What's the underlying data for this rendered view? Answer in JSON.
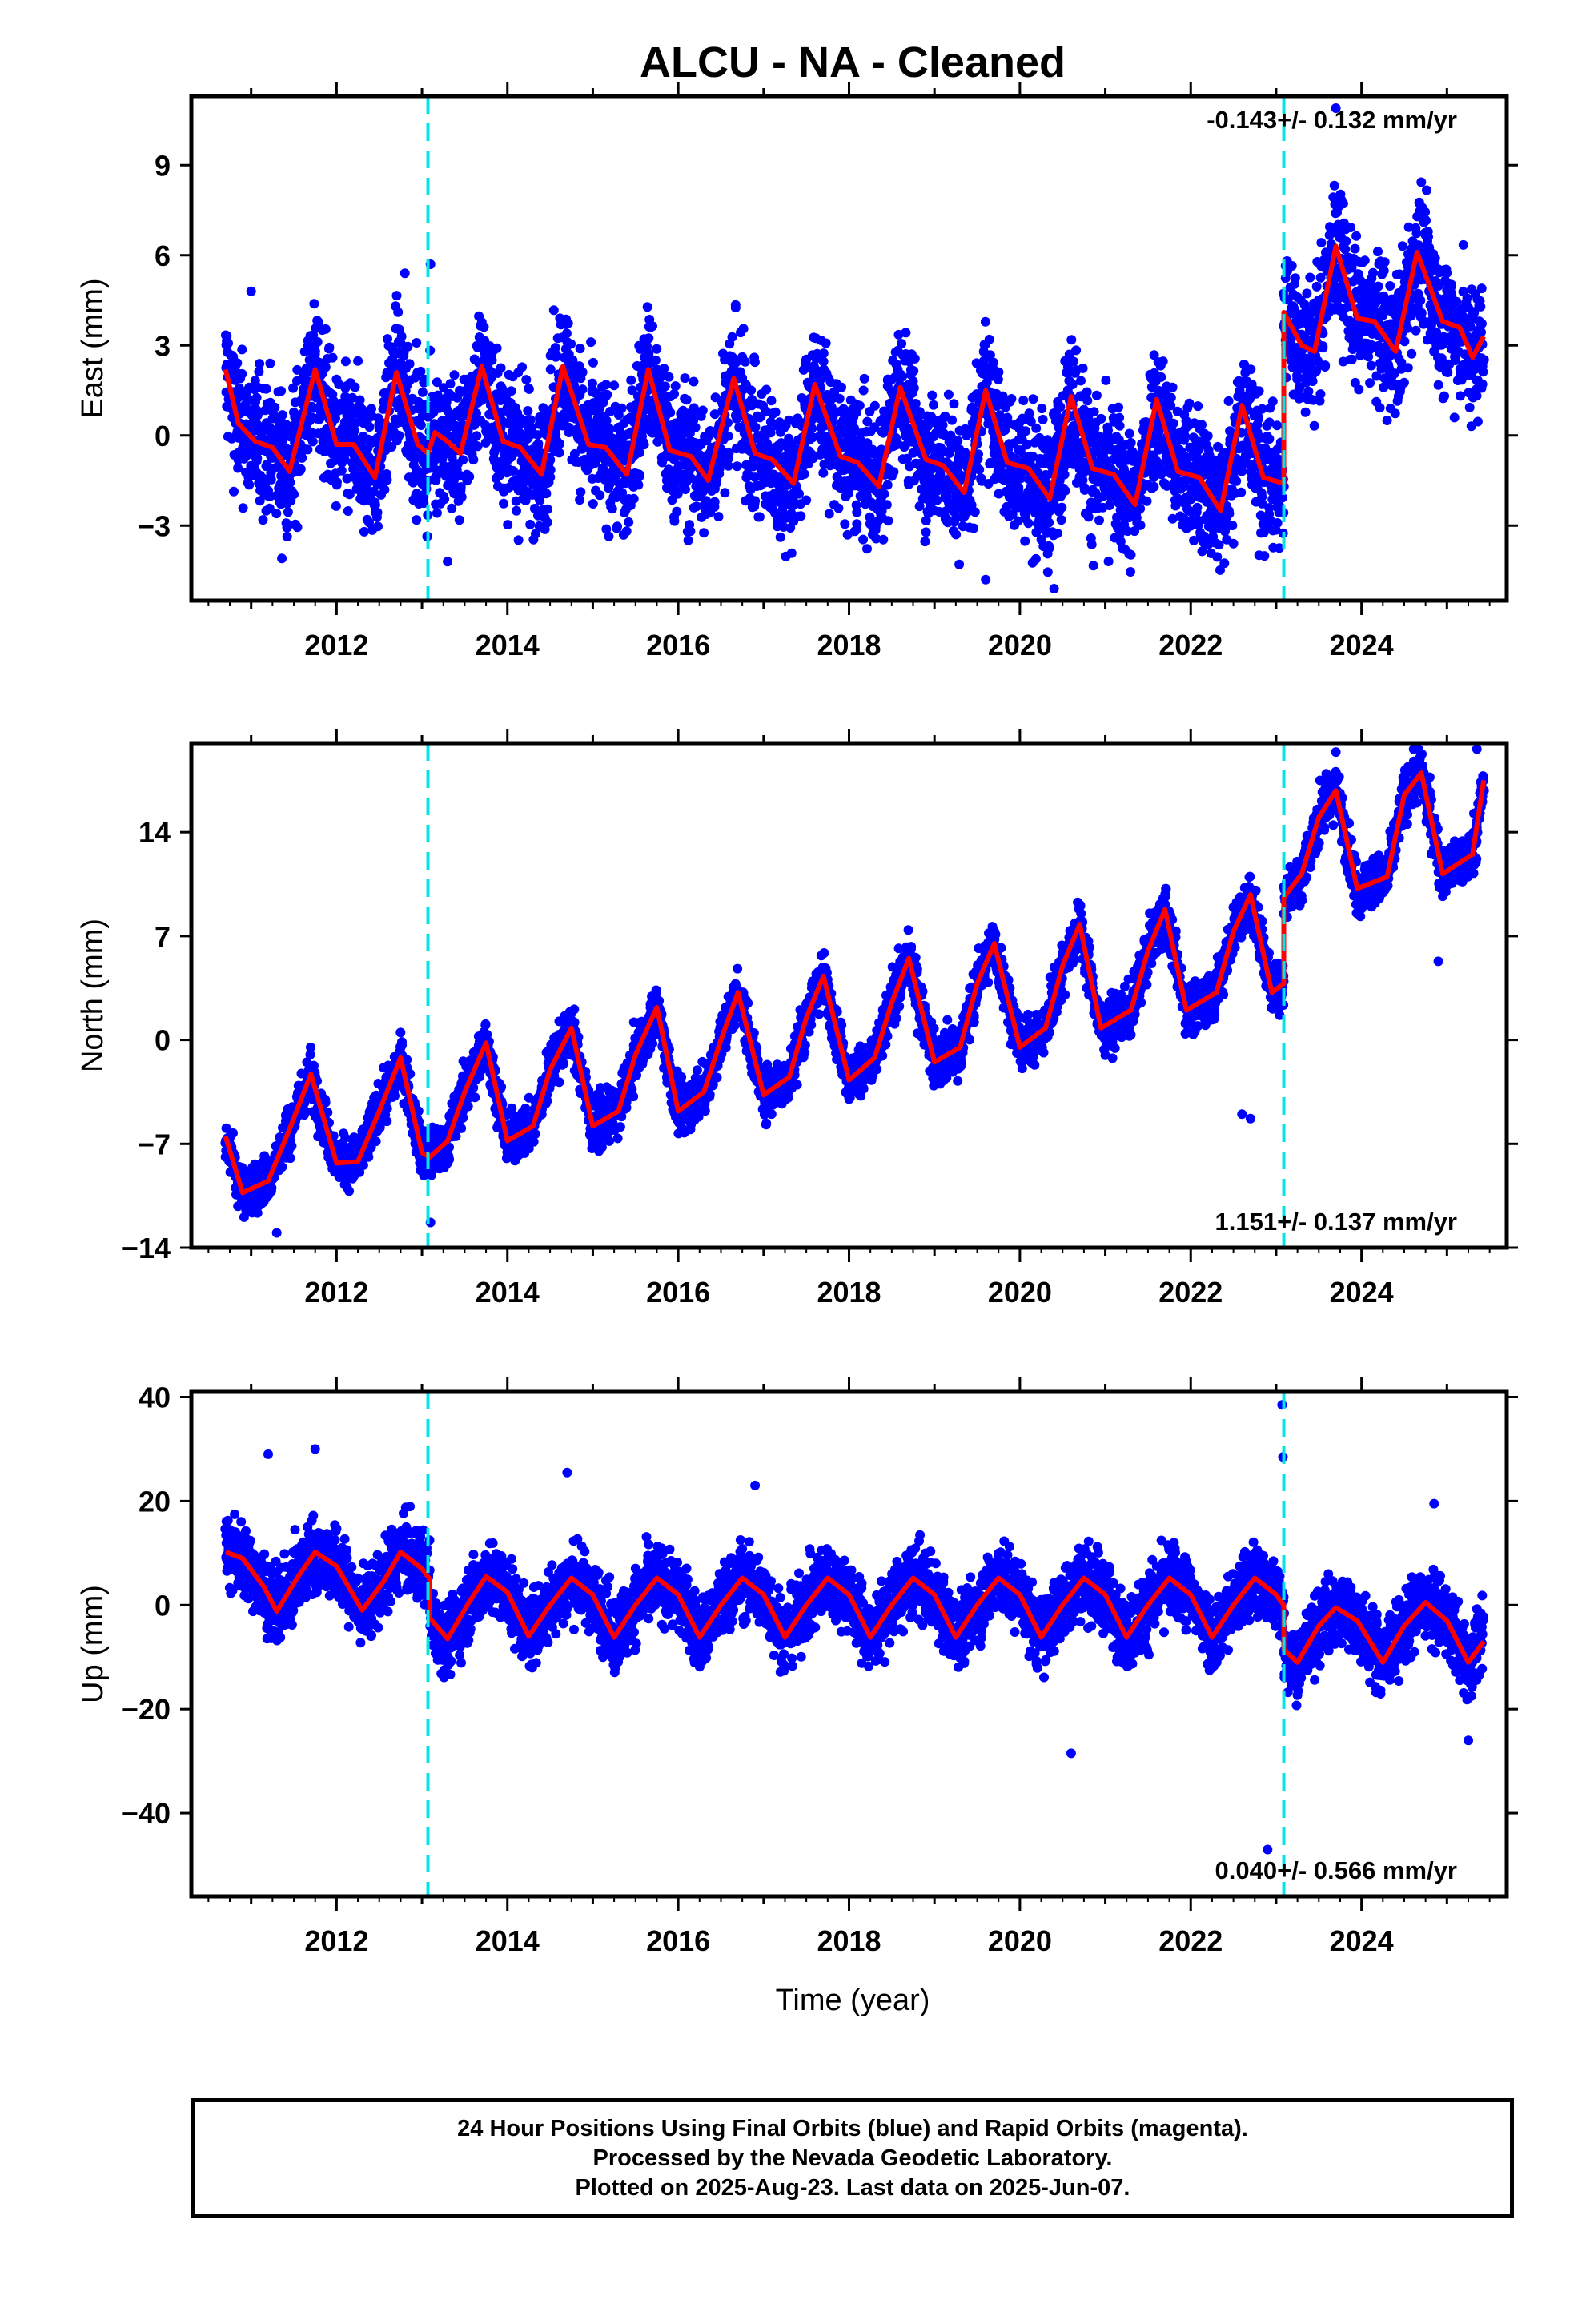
{
  "chart_data": {
    "type": "scatter",
    "title": "ALCU  - NA - Cleaned",
    "xlabel": "Time (year)",
    "xlim": [
      2010.3,
      2025.7
    ],
    "x_ticks": [
      "2012",
      "2014",
      "2016",
      "2018",
      "2020",
      "2022",
      "2024"
    ],
    "offset_lines_year": [
      2013.07,
      2023.09
    ],
    "data_range_year": [
      2010.7,
      2025.43
    ],
    "colors": {
      "final_orbits": "#0000ff",
      "rapid_orbits": "#ff00ff",
      "model": "#ff0000",
      "offsets": "#00e6e6"
    },
    "panels": [
      {
        "component": "east",
        "ylabel": "East (mm)",
        "ylim": [
          -5.5,
          11.3
        ],
        "y_ticks": [
          "9",
          "6",
          "3",
          "0",
          "-3"
        ],
        "y_tick_values": [
          9,
          6,
          3,
          0,
          -3
        ],
        "rate_text": "-0.143+/- 0.132 mm/yr",
        "rate_position": "top-right",
        "model": [
          [
            2010.7,
            2.2
          ],
          [
            2010.85,
            0.4
          ],
          [
            2011.05,
            -0.2
          ],
          [
            2011.25,
            -0.4
          ],
          [
            2011.45,
            -1.2
          ],
          [
            2011.75,
            2.2
          ],
          [
            2012.0,
            -0.3
          ],
          [
            2012.2,
            -0.3
          ],
          [
            2012.45,
            -1.4
          ],
          [
            2012.7,
            2.1
          ],
          [
            2012.95,
            -0.3
          ],
          [
            2013.07,
            -0.6
          ],
          [
            2013.15,
            0.1
          ],
          [
            2013.3,
            -0.2
          ],
          [
            2013.45,
            -0.6
          ],
          [
            2013.7,
            2.3
          ],
          [
            2013.95,
            -0.2
          ],
          [
            2014.15,
            -0.4
          ],
          [
            2014.4,
            -1.3
          ],
          [
            2014.65,
            2.3
          ],
          [
            2014.95,
            -0.3
          ],
          [
            2015.15,
            -0.4
          ],
          [
            2015.4,
            -1.3
          ],
          [
            2015.65,
            2.2
          ],
          [
            2015.9,
            -0.5
          ],
          [
            2016.15,
            -0.7
          ],
          [
            2016.35,
            -1.5
          ],
          [
            2016.65,
            1.9
          ],
          [
            2016.9,
            -0.6
          ],
          [
            2017.1,
            -0.8
          ],
          [
            2017.35,
            -1.6
          ],
          [
            2017.6,
            1.7
          ],
          [
            2017.9,
            -0.7
          ],
          [
            2018.1,
            -0.9
          ],
          [
            2018.35,
            -1.7
          ],
          [
            2018.6,
            1.6
          ],
          [
            2018.9,
            -0.8
          ],
          [
            2019.1,
            -1.0
          ],
          [
            2019.35,
            -1.9
          ],
          [
            2019.6,
            1.5
          ],
          [
            2019.85,
            -0.9
          ],
          [
            2020.1,
            -1.1
          ],
          [
            2020.35,
            -2.1
          ],
          [
            2020.6,
            1.3
          ],
          [
            2020.85,
            -1.1
          ],
          [
            2021.1,
            -1.3
          ],
          [
            2021.35,
            -2.3
          ],
          [
            2021.6,
            1.2
          ],
          [
            2021.85,
            -1.2
          ],
          [
            2022.1,
            -1.4
          ],
          [
            2022.35,
            -2.5
          ],
          [
            2022.6,
            1.0
          ],
          [
            2022.85,
            -1.4
          ],
          [
            2023.09,
            -1.6
          ],
          [
            2023.09,
            4.1
          ],
          [
            2023.3,
            3.0
          ],
          [
            2023.45,
            2.8
          ],
          [
            2023.7,
            6.3
          ],
          [
            2023.95,
            3.9
          ],
          [
            2024.15,
            3.8
          ],
          [
            2024.4,
            2.8
          ],
          [
            2024.65,
            6.1
          ],
          [
            2024.95,
            3.8
          ],
          [
            2025.15,
            3.6
          ],
          [
            2025.3,
            2.6
          ],
          [
            2025.43,
            3.3
          ]
        ],
        "scatter_anchor": [
          [
            2010.7,
            2.0
          ],
          [
            2011.5,
            0.5
          ],
          [
            2012.5,
            0.5
          ],
          [
            2013.07,
            0.5
          ],
          [
            2013.08,
            0.4
          ],
          [
            2023.09,
            -0.4
          ],
          [
            2023.09,
            4.3
          ],
          [
            2025.43,
            3.5
          ]
        ],
        "scatter_amplitude": 1.9,
        "scatter_density": 4.2,
        "outliers": [
          [
            2011.0,
            4.8
          ],
          [
            2012.8,
            5.4
          ],
          [
            2013.1,
            5.7
          ],
          [
            2013.3,
            -4.2
          ],
          [
            2019.6,
            -4.8
          ],
          [
            2020.4,
            -5.1
          ],
          [
            2022.5,
            -3.6
          ],
          [
            2023.7,
            10.9
          ],
          [
            2024.3,
            0.5
          ]
        ]
      },
      {
        "component": "north",
        "ylabel": "North (mm)",
        "ylim": [
          -14,
          20
        ],
        "y_ticks": [
          "14",
          "7",
          "0",
          "-7",
          "-14"
        ],
        "y_tick_values": [
          14,
          7,
          0,
          -7,
          -14
        ],
        "rate_text": "1.151+/- 0.137 mm/yr",
        "rate_position": "bottom-right",
        "model": [
          [
            2010.7,
            -6.5
          ],
          [
            2010.9,
            -10.3
          ],
          [
            2011.2,
            -9.5
          ],
          [
            2011.45,
            -6.0
          ],
          [
            2011.7,
            -2.3
          ],
          [
            2012.0,
            -8.3
          ],
          [
            2012.25,
            -8.2
          ],
          [
            2012.5,
            -4.8
          ],
          [
            2012.75,
            -1.2
          ],
          [
            2013.0,
            -7.6
          ],
          [
            2013.09,
            -7.9
          ],
          [
            2013.3,
            -6.8
          ],
          [
            2013.5,
            -3.5
          ],
          [
            2013.75,
            -0.2
          ],
          [
            2014.0,
            -6.8
          ],
          [
            2014.3,
            -5.8
          ],
          [
            2014.5,
            -2.0
          ],
          [
            2014.75,
            0.8
          ],
          [
            2015.0,
            -5.8
          ],
          [
            2015.3,
            -4.8
          ],
          [
            2015.5,
            -1.0
          ],
          [
            2015.75,
            2.2
          ],
          [
            2016.0,
            -4.8
          ],
          [
            2016.3,
            -3.5
          ],
          [
            2016.5,
            0.0
          ],
          [
            2016.7,
            3.2
          ],
          [
            2017.0,
            -3.7
          ],
          [
            2017.3,
            -2.5
          ],
          [
            2017.5,
            1.5
          ],
          [
            2017.7,
            4.3
          ],
          [
            2018.0,
            -2.7
          ],
          [
            2018.3,
            -1.2
          ],
          [
            2018.5,
            2.5
          ],
          [
            2018.7,
            5.5
          ],
          [
            2019.0,
            -1.5
          ],
          [
            2019.3,
            -0.5
          ],
          [
            2019.5,
            3.8
          ],
          [
            2019.7,
            6.5
          ],
          [
            2020.0,
            -0.5
          ],
          [
            2020.3,
            0.8
          ],
          [
            2020.5,
            5.0
          ],
          [
            2020.7,
            7.8
          ],
          [
            2020.95,
            0.8
          ],
          [
            2021.3,
            2.0
          ],
          [
            2021.5,
            6.0
          ],
          [
            2021.7,
            8.8
          ],
          [
            2021.95,
            2.0
          ],
          [
            2022.3,
            3.2
          ],
          [
            2022.5,
            7.3
          ],
          [
            2022.7,
            9.8
          ],
          [
            2022.95,
            3.2
          ],
          [
            2023.09,
            3.8
          ],
          [
            2023.09,
            9.6
          ],
          [
            2023.3,
            11.2
          ],
          [
            2023.5,
            15.0
          ],
          [
            2023.7,
            16.8
          ],
          [
            2023.95,
            10.2
          ],
          [
            2024.3,
            11.0
          ],
          [
            2024.5,
            16.5
          ],
          [
            2024.7,
            18.0
          ],
          [
            2024.95,
            11.2
          ],
          [
            2025.3,
            12.5
          ],
          [
            2025.43,
            17.5
          ]
        ],
        "scatter_anchor": [
          [
            2010.7,
            -6.5
          ],
          [
            2023.09,
            3.8
          ],
          [
            2023.09,
            9.6
          ],
          [
            2025.43,
            17.5
          ]
        ],
        "scatter_amplitude": 1.4,
        "scatter_density": 4.2,
        "outliers": [
          [
            2011.3,
            -13.0
          ],
          [
            2013.1,
            -12.3
          ],
          [
            2022.6,
            -5.0
          ],
          [
            2022.7,
            -5.3
          ],
          [
            2023.7,
            19.4
          ],
          [
            2024.6,
            18.5
          ],
          [
            2024.9,
            5.3
          ],
          [
            2025.35,
            19.6
          ]
        ]
      },
      {
        "component": "up",
        "ylabel": "Up (mm)",
        "ylim": [
          -56,
          41
        ],
        "y_ticks": [
          "40",
          "20",
          "0",
          "-20",
          "-40"
        ],
        "y_tick_values": [
          40,
          20,
          0,
          -20,
          -40
        ],
        "rate_text": "0.040+/- 0.566 mm/yr",
        "rate_position": "bottom-right",
        "model": [
          [
            2010.7,
            10.2
          ],
          [
            2010.9,
            9.0
          ],
          [
            2011.15,
            3.5
          ],
          [
            2011.3,
            -1.2
          ],
          [
            2011.55,
            5.5
          ],
          [
            2011.75,
            10.2
          ],
          [
            2012.0,
            7.5
          ],
          [
            2012.3,
            -1.0
          ],
          [
            2012.55,
            4.5
          ],
          [
            2012.75,
            10.2
          ],
          [
            2013.0,
            7.0
          ],
          [
            2013.09,
            5.0
          ],
          [
            2013.09,
            -2.5
          ],
          [
            2013.3,
            -6.5
          ],
          [
            2013.55,
            0.5
          ],
          [
            2013.75,
            5.5
          ],
          [
            2014.0,
            2.5
          ],
          [
            2014.25,
            -6.0
          ],
          [
            2014.5,
            0.0
          ],
          [
            2014.75,
            5.2
          ],
          [
            2015.0,
            2.0
          ],
          [
            2015.25,
            -6.2
          ],
          [
            2015.5,
            0.0
          ],
          [
            2015.75,
            5.2
          ],
          [
            2016.0,
            2.0
          ],
          [
            2016.25,
            -6.2
          ],
          [
            2016.5,
            0.0
          ],
          [
            2016.75,
            5.2
          ],
          [
            2017.0,
            2.0
          ],
          [
            2017.25,
            -6.2
          ],
          [
            2017.5,
            0.0
          ],
          [
            2017.75,
            5.2
          ],
          [
            2018.0,
            2.0
          ],
          [
            2018.25,
            -6.2
          ],
          [
            2018.5,
            0.0
          ],
          [
            2018.75,
            5.2
          ],
          [
            2019.0,
            2.0
          ],
          [
            2019.25,
            -6.2
          ],
          [
            2019.5,
            0.0
          ],
          [
            2019.75,
            5.2
          ],
          [
            2020.0,
            2.0
          ],
          [
            2020.25,
            -6.2
          ],
          [
            2020.5,
            0.0
          ],
          [
            2020.75,
            5.2
          ],
          [
            2021.0,
            2.0
          ],
          [
            2021.25,
            -6.2
          ],
          [
            2021.5,
            0.0
          ],
          [
            2021.75,
            5.2
          ],
          [
            2022.0,
            2.0
          ],
          [
            2022.25,
            -6.2
          ],
          [
            2022.5,
            0.0
          ],
          [
            2022.75,
            5.2
          ],
          [
            2023.0,
            2.0
          ],
          [
            2023.09,
            0.0
          ],
          [
            2023.09,
            -8.5
          ],
          [
            2023.25,
            -11.0
          ],
          [
            2023.5,
            -4.0
          ],
          [
            2023.7,
            -0.5
          ],
          [
            2023.95,
            -3.0
          ],
          [
            2024.25,
            -11.0
          ],
          [
            2024.5,
            -4.0
          ],
          [
            2024.75,
            0.5
          ],
          [
            2025.0,
            -3.0
          ],
          [
            2025.25,
            -11.0
          ],
          [
            2025.43,
            -7.0
          ]
        ],
        "scatter_anchor": [
          [
            2010.7,
            0.0
          ],
          [
            2025.43,
            0.0
          ]
        ],
        "scatter_amplitude": 5.8,
        "scatter_density": 4.2,
        "outliers": [
          [
            2011.2,
            29.0
          ],
          [
            2011.75,
            30.0
          ],
          [
            2014.7,
            25.5
          ],
          [
            2016.9,
            23.0
          ],
          [
            2020.6,
            -28.5
          ],
          [
            2023.07,
            38.5
          ],
          [
            2023.08,
            28.5
          ],
          [
            2022.9,
            -47.0
          ],
          [
            2025.25,
            -26.0
          ],
          [
            2024.85,
            19.5
          ]
        ]
      }
    ],
    "footer_lines": [
      "24 Hour Positions Using Final Orbits (blue) and Rapid Orbits (magenta).",
      "Processed by the Nevada Geodetic Laboratory.",
      "Plotted on 2025-Aug-23. Last data on 2025-Jun-07."
    ]
  }
}
